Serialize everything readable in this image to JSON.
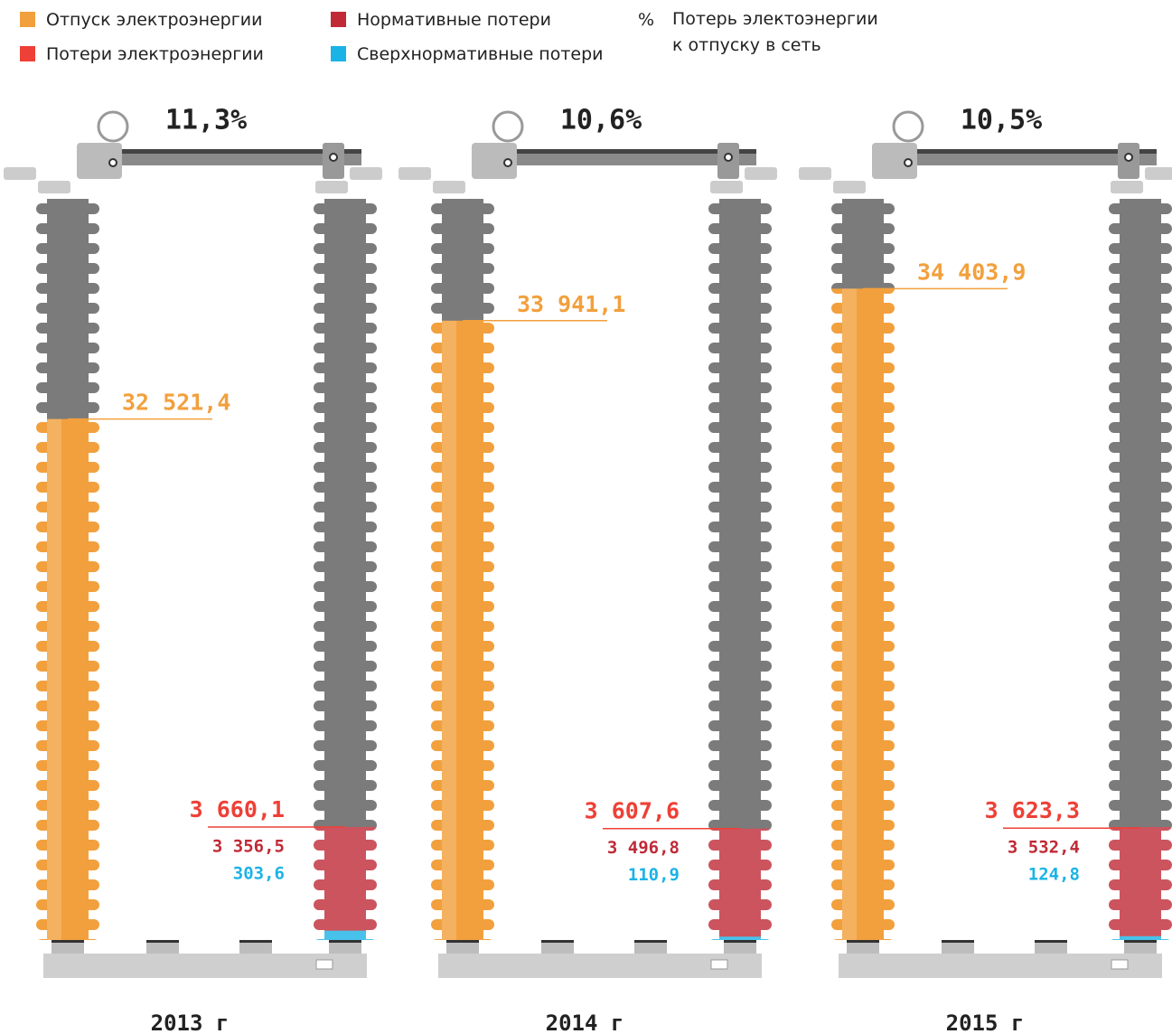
{
  "chart_data": {
    "type": "insulator",
    "categories": [
      "2013 г",
      "2014 г",
      "2015 г"
    ],
    "ylim": [
      25000,
      35700
    ],
    "y2lim": [
      0,
      24000
    ],
    "series": [
      {
        "name": "Отпуск электроэнергии",
        "color": "#f2a03d",
        "values": [
          32521.4,
          33941.1,
          34403.9
        ],
        "value_labels": [
          "32 521,4",
          "33 941,1",
          "34 403,9"
        ]
      },
      {
        "name": "Потери электроэнергии",
        "color": "#ee4036",
        "axis": "y2",
        "values": [
          3660.1,
          3607.6,
          3623.3
        ],
        "value_labels": [
          "3 660,1",
          "3 607,6",
          "3 623,3"
        ]
      },
      {
        "name": "Нормативные потери",
        "color": "#c02a36",
        "axis": "y2",
        "values": [
          3356.5,
          3496.8,
          3532.4
        ],
        "value_labels": [
          "3 356,5",
          "3 496,8",
          "3 532,4"
        ]
      },
      {
        "name": "Сверхнормативные потери",
        "color": "#1bb3e6",
        "axis": "y2",
        "values": [
          303.6,
          110.9,
          124.8
        ],
        "value_labels": [
          "303,6",
          "110,9",
          "124,8"
        ]
      },
      {
        "name": "Потерь электоэнергии к отпуску в сеть",
        "symbol": "%",
        "values": [
          11.3,
          10.6,
          10.5
        ],
        "value_labels": [
          "11,3%",
          "10,6%",
          "10,5%"
        ]
      }
    ]
  }
}
